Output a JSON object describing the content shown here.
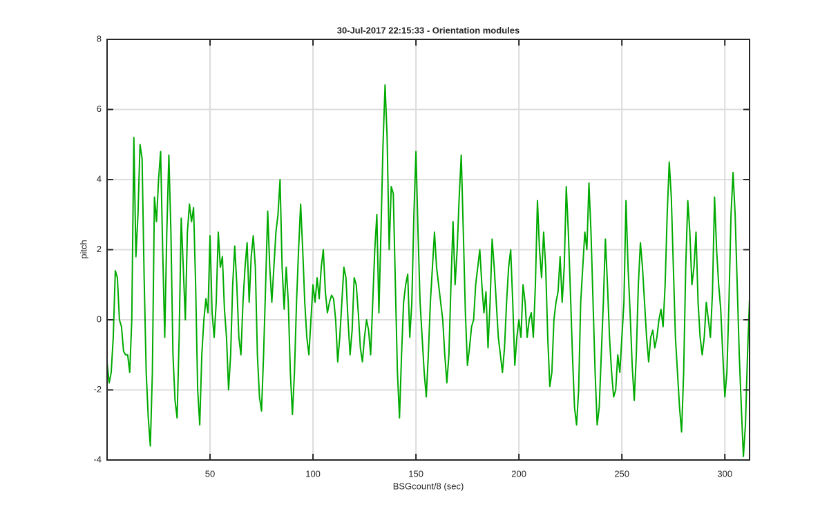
{
  "chart_data": {
    "type": "line",
    "title": "30-Jul-2017 22:15:33 - Orientation modules",
    "x_label": "BSGcount/8 (sec)",
    "y_label": "pitch",
    "color": "#00aa00",
    "grid": true,
    "xlim": [
      0,
      312
    ],
    "ylim": [
      -4,
      8
    ],
    "xticks": [
      50,
      100,
      150,
      200,
      250,
      300
    ],
    "yticks": [
      -4,
      -2,
      0,
      2,
      4,
      6,
      8
    ],
    "x": [
      0,
      1,
      2,
      3,
      4,
      5,
      6,
      7,
      8,
      9,
      10,
      11,
      12,
      13,
      14,
      15,
      16,
      17,
      18,
      19,
      20,
      21,
      22,
      23,
      24,
      25,
      26,
      27,
      28,
      29,
      30,
      31,
      32,
      33,
      34,
      35,
      36,
      37,
      38,
      39,
      40,
      41,
      42,
      43,
      44,
      45,
      46,
      47,
      48,
      49,
      50,
      51,
      52,
      53,
      54,
      55,
      56,
      57,
      58,
      59,
      60,
      61,
      62,
      63,
      64,
      65,
      66,
      67,
      68,
      69,
      70,
      71,
      72,
      73,
      74,
      75,
      76,
      77,
      78,
      79,
      80,
      81,
      82,
      83,
      84,
      85,
      86,
      87,
      88,
      89,
      90,
      91,
      92,
      93,
      94,
      95,
      96,
      97,
      98,
      99,
      100,
      101,
      102,
      103,
      104,
      105,
      106,
      107,
      108,
      109,
      110,
      111,
      112,
      113,
      114,
      115,
      116,
      117,
      118,
      119,
      120,
      121,
      122,
      123,
      124,
      125,
      126,
      127,
      128,
      129,
      130,
      131,
      132,
      133,
      134,
      135,
      136,
      137,
      138,
      139,
      140,
      141,
      142,
      143,
      144,
      145,
      146,
      147,
      148,
      149,
      150,
      151,
      152,
      153,
      154,
      155,
      156,
      157,
      158,
      159,
      160,
      161,
      162,
      163,
      164,
      165,
      166,
      167,
      168,
      169,
      170,
      171,
      172,
      173,
      174,
      175,
      176,
      177,
      178,
      179,
      180,
      181,
      182,
      183,
      184,
      185,
      186,
      187,
      188,
      189,
      190,
      191,
      192,
      193,
      194,
      195,
      196,
      197,
      198,
      199,
      200,
      201,
      202,
      203,
      204,
      205,
      206,
      207,
      208,
      209,
      210,
      211,
      212,
      213,
      214,
      215,
      216,
      217,
      218,
      219,
      220,
      221,
      222,
      223,
      224,
      225,
      226,
      227,
      228,
      229,
      230,
      231,
      232,
      233,
      234,
      235,
      236,
      237,
      238,
      239,
      240,
      241,
      242,
      243,
      244,
      245,
      246,
      247,
      248,
      249,
      250,
      251,
      252,
      253,
      254,
      255,
      256,
      257,
      258,
      259,
      260,
      261,
      262,
      263,
      264,
      265,
      266,
      267,
      268,
      269,
      270,
      271,
      272,
      273,
      274,
      275,
      276,
      277,
      278,
      279,
      280,
      281,
      282,
      283,
      284,
      285,
      286,
      287,
      288,
      289,
      290,
      291,
      292,
      293,
      294,
      295,
      296,
      297,
      298,
      299,
      300,
      301,
      302,
      303,
      304,
      305,
      306,
      307,
      308,
      309,
      310,
      311,
      312
    ],
    "values": [
      -1.2,
      -1.8,
      -1.5,
      -0.5,
      1.4,
      1.2,
      0,
      -0.2,
      -0.9,
      -1.0,
      -1.0,
      -1.5,
      0,
      5.2,
      1.8,
      3.0,
      5.0,
      4.6,
      1.2,
      -1.5,
      -2.8,
      -3.6,
      -1.5,
      3.5,
      2.8,
      4.0,
      4.8,
      2.0,
      -0.5,
      2.5,
      4.7,
      2.5,
      -1.0,
      -2.3,
      -2.8,
      -0.5,
      2.9,
      1.5,
      0,
      2.5,
      3.3,
      2.8,
      3.2,
      1.0,
      -2.0,
      -3.0,
      -1.0,
      0,
      0.6,
      0.2,
      2.4,
      0.2,
      -0.5,
      0.5,
      2.5,
      1.5,
      1.8,
      0.3,
      -0.5,
      -2.0,
      -1.0,
      1.0,
      2.1,
      1.0,
      -0.5,
      -1.0,
      0.5,
      1.5,
      2.2,
      0.5,
      1.8,
      2.4,
      1.5,
      -1.0,
      -2.2,
      -2.6,
      -1.0,
      1.0,
      3.1,
      1.5,
      0.5,
      1.5,
      2.5,
      3.0,
      4.0,
      1.5,
      0.3,
      1.5,
      0.5,
      -1.5,
      -2.7,
      -1.5,
      0.5,
      2.0,
      3.3,
      2.0,
      0.5,
      -0.5,
      -1.0,
      0,
      1.0,
      0.5,
      1.2,
      0.6,
      1.5,
      2.0,
      0.8,
      0.2,
      0.5,
      0.7,
      0.6,
      0,
      -1.2,
      -0.5,
      0.5,
      1.5,
      1.2,
      0,
      -1.0,
      -0.3,
      1.2,
      1.0,
      0.2,
      -0.8,
      -1.2,
      -0.5,
      0,
      -0.3,
      -1.0,
      0.5,
      2.0,
      3.0,
      0.2,
      2.5,
      5.0,
      6.7,
      5.2,
      2.0,
      3.8,
      3.6,
      1.0,
      -1.5,
      -2.8,
      -1.0,
      0.5,
      1.0,
      1.3,
      -0.5,
      0.5,
      3.0,
      4.8,
      2.5,
      0.5,
      -0.5,
      -1.5,
      -2.2,
      -1.0,
      0.5,
      1.5,
      2.5,
      1.5,
      1.0,
      0.5,
      0,
      -1.0,
      -1.8,
      -1.0,
      1.0,
      2.8,
      1.0,
      2.0,
      3.5,
      4.7,
      2.5,
      0.2,
      -1.3,
      -0.8,
      -0.2,
      0,
      1.0,
      1.5,
      2.0,
      1.0,
      0.2,
      0.8,
      -0.8,
      0.5,
      2.3,
      1.5,
      0.5,
      -0.5,
      -1.0,
      -1.5,
      -0.8,
      0.5,
      1.5,
      2.0,
      0.5,
      -1.3,
      -0.5,
      0,
      -0.5,
      1.0,
      0.5,
      -0.5,
      0,
      0.2,
      -0.5,
      1.0,
      3.4,
      2.0,
      1.2,
      2.5,
      1.5,
      -0.5,
      -1.9,
      -1.5,
      0,
      0.5,
      0.8,
      1.8,
      0.5,
      1.5,
      3.8,
      2.5,
      0.8,
      -1.0,
      -2.5,
      -3.0,
      -2.0,
      0.5,
      1.5,
      2.5,
      2.0,
      3.9,
      2.5,
      0.5,
      -1.5,
      -3.0,
      -2.5,
      -1.0,
      0.5,
      2.3,
      1.0,
      -0.5,
      -1.5,
      -2.2,
      -2.0,
      -1.0,
      -1.5,
      -0.5,
      0.5,
      3.4,
      1.5,
      0.2,
      -1.3,
      -2.3,
      -1.0,
      1.0,
      2.2,
      1.5,
      0.5,
      -0.5,
      -1.2,
      -0.5,
      -0.3,
      -0.8,
      -0.5,
      0,
      0.3,
      -0.2,
      1.0,
      3.0,
      4.5,
      3.5,
      1.5,
      -0.5,
      -1.5,
      -2.5,
      -3.2,
      -1.5,
      1.5,
      3.4,
      2.5,
      1.0,
      1.5,
      2.5,
      0.5,
      -0.5,
      -1.0,
      -0.5,
      0.5,
      0,
      -0.5,
      0.8,
      3.5,
      2.0,
      1.0,
      0.3,
      -1.0,
      -2.2,
      -1.5,
      0.5,
      3.0,
      4.2,
      3.0,
      1.0,
      -1.0,
      -2.5,
      -3.9,
      -3.0,
      -1.0,
      0.6
    ]
  }
}
